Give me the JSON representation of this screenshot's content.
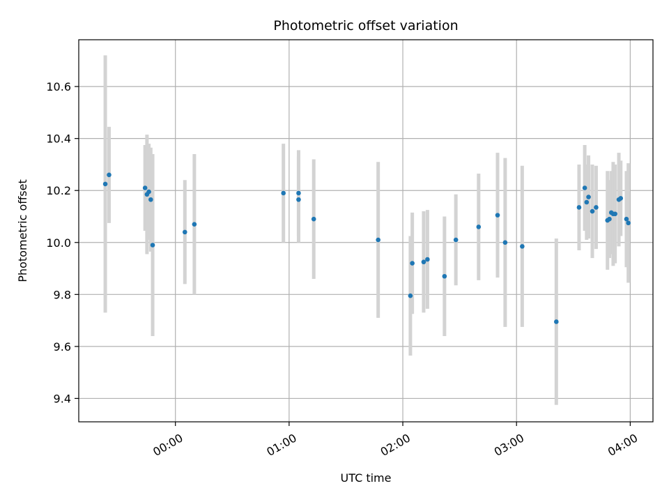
{
  "chart_data": {
    "type": "scatter",
    "title": "Photometric offset variation",
    "xlabel": "UTC time",
    "ylabel": "Photometric offset",
    "x_ticks": [
      "00:00",
      "01:00",
      "02:00",
      "03:00",
      "04:00"
    ],
    "y_ticks": [
      "9.4",
      "9.6",
      "9.8",
      "10.0",
      "10.2",
      "10.4",
      "10.6"
    ],
    "x_tick_minutes": [
      0,
      60,
      120,
      180,
      240
    ],
    "y_tick_values": [
      9.4,
      9.6,
      9.8,
      10.0,
      10.2,
      10.4,
      10.6
    ],
    "xlim_minutes": [
      -51,
      252
    ],
    "ylim": [
      9.31,
      10.78
    ],
    "grid": true,
    "colors": {
      "point": "#1f77b4",
      "errorbar": "#d3d3d3",
      "grid": "#b0b0b0"
    },
    "points": [
      {
        "t": "23:23",
        "y": 10.225,
        "err": 0.495
      },
      {
        "t": "23:25",
        "y": 10.26,
        "err": 0.185
      },
      {
        "t": "23:44",
        "y": 10.21,
        "err": 0.165
      },
      {
        "t": "23:45",
        "y": 10.185,
        "err": 0.23
      },
      {
        "t": "23:46",
        "y": 10.195,
        "err": 0.185
      },
      {
        "t": "23:47",
        "y": 10.165,
        "err": 0.2
      },
      {
        "t": "23:48",
        "y": 9.99,
        "err": 0.35
      },
      {
        "t": "00:05",
        "y": 10.04,
        "err": 0.2
      },
      {
        "t": "00:10",
        "y": 10.07,
        "err": 0.27
      },
      {
        "t": "00:57",
        "y": 10.19,
        "err": 0.19
      },
      {
        "t": "01:05",
        "y": 10.19,
        "err": 0.165
      },
      {
        "t": "01:05",
        "y": 10.165,
        "err": 0.165
      },
      {
        "t": "01:13",
        "y": 10.09,
        "err": 0.23
      },
      {
        "t": "01:47",
        "y": 10.01,
        "err": 0.3
      },
      {
        "t": "02:04",
        "y": 9.795,
        "err": 0.23
      },
      {
        "t": "02:05",
        "y": 9.92,
        "err": 0.195
      },
      {
        "t": "02:11",
        "y": 9.925,
        "err": 0.195
      },
      {
        "t": "02:13",
        "y": 9.935,
        "err": 0.19
      },
      {
        "t": "02:22",
        "y": 9.87,
        "err": 0.23
      },
      {
        "t": "02:28",
        "y": 10.01,
        "err": 0.175
      },
      {
        "t": "02:40",
        "y": 10.06,
        "err": 0.205
      },
      {
        "t": "02:50",
        "y": 10.105,
        "err": 0.24
      },
      {
        "t": "02:54",
        "y": 10.0,
        "err": 0.325
      },
      {
        "t": "03:03",
        "y": 9.985,
        "err": 0.31
      },
      {
        "t": "03:21",
        "y": 9.695,
        "err": 0.32
      },
      {
        "t": "03:33",
        "y": 10.135,
        "err": 0.165
      },
      {
        "t": "03:36",
        "y": 10.21,
        "err": 0.165
      },
      {
        "t": "03:37",
        "y": 10.155,
        "err": 0.145
      },
      {
        "t": "03:38",
        "y": 10.175,
        "err": 0.16
      },
      {
        "t": "03:40",
        "y": 10.12,
        "err": 0.18
      },
      {
        "t": "03:42",
        "y": 10.135,
        "err": 0.16
      },
      {
        "t": "03:48",
        "y": 10.085,
        "err": 0.19
      },
      {
        "t": "03:49",
        "y": 10.09,
        "err": 0.15
      },
      {
        "t": "03:50",
        "y": 10.115,
        "err": 0.16
      },
      {
        "t": "03:51",
        "y": 10.11,
        "err": 0.2
      },
      {
        "t": "03:52",
        "y": 10.11,
        "err": 0.19
      },
      {
        "t": "03:54",
        "y": 10.165,
        "err": 0.18
      },
      {
        "t": "03:55",
        "y": 10.17,
        "err": 0.145
      },
      {
        "t": "03:58",
        "y": 10.09,
        "err": 0.185
      },
      {
        "t": "03:59",
        "y": 10.075,
        "err": 0.23
      }
    ]
  }
}
